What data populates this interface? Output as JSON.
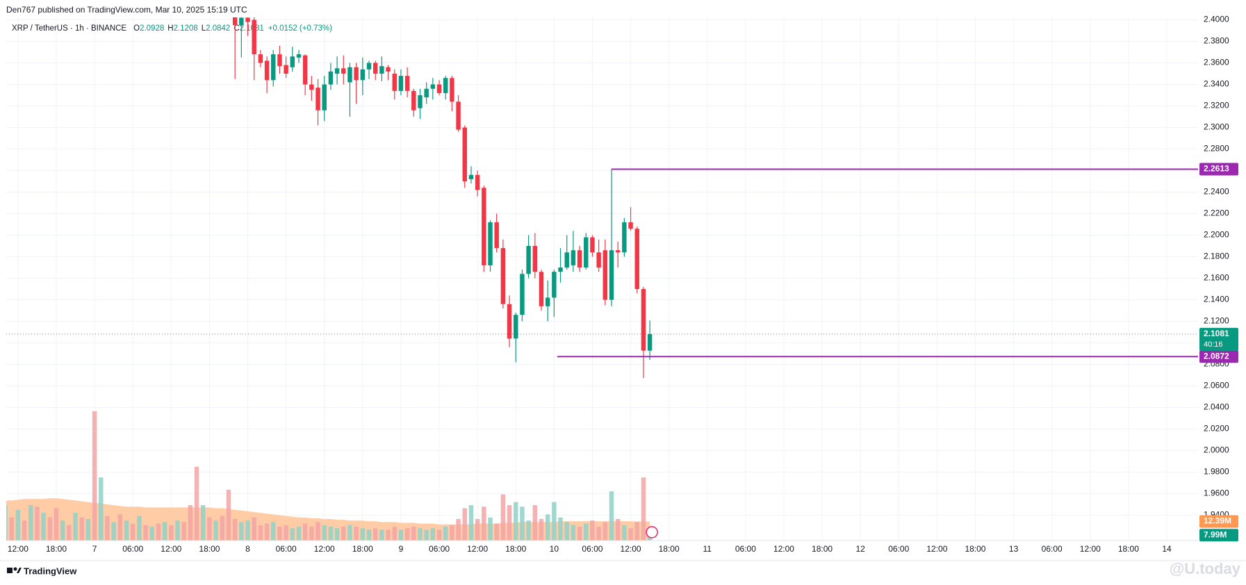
{
  "published": "Den767 published on TradingView.com, Mar 10, 2025 15:19 UTC",
  "footer": "TradingView",
  "watermark": "@U.today",
  "chart_data": {
    "type": "candlestick",
    "title": "XRP / TetherUS · 1h · BINANCE",
    "ohlc_labels": [
      "O",
      "H",
      "L",
      "C"
    ],
    "ohlc_values": [
      2.0928,
      2.1208,
      2.0842,
      2.1081
    ],
    "change": "+0.0152 (+0.73%)",
    "up_color": "#089981",
    "down_color": "#f23645",
    "xlim": [
      -13.84,
      172.9
    ],
    "ylim": [
      1.9164,
      2.4023
    ],
    "grid": true,
    "xticks": [
      {
        "value": -12,
        "label": "12:00"
      },
      {
        "value": -6,
        "label": "18:00"
      },
      {
        "value": 0,
        "label": "7"
      },
      {
        "value": 6,
        "label": "06:00"
      },
      {
        "value": 12,
        "label": "12:00"
      },
      {
        "value": 18,
        "label": "18:00"
      },
      {
        "value": 24,
        "label": "8"
      },
      {
        "value": 30,
        "label": "06:00"
      },
      {
        "value": 36,
        "label": "12:00"
      },
      {
        "value": 42,
        "label": "18:00"
      },
      {
        "value": 48,
        "label": "9"
      },
      {
        "value": 54,
        "label": "06:00"
      },
      {
        "value": 60,
        "label": "12:00"
      },
      {
        "value": 66,
        "label": "18:00"
      },
      {
        "value": 72,
        "label": "10"
      },
      {
        "value": 78,
        "label": "06:00"
      },
      {
        "value": 84,
        "label": "12:00"
      },
      {
        "value": 90,
        "label": "18:00"
      },
      {
        "value": 96,
        "label": "11"
      },
      {
        "value": 102,
        "label": "06:00"
      },
      {
        "value": 108,
        "label": "12:00"
      },
      {
        "value": 114,
        "label": "18:00"
      },
      {
        "value": 120,
        "label": "12"
      },
      {
        "value": 126,
        "label": "06:00"
      },
      {
        "value": 132,
        "label": "12:00"
      },
      {
        "value": 138,
        "label": "18:00"
      },
      {
        "value": 144,
        "label": "13"
      },
      {
        "value": 150,
        "label": "06:00"
      },
      {
        "value": 156,
        "label": "12:00"
      },
      {
        "value": 162,
        "label": "18:00"
      },
      {
        "value": 168,
        "label": "14"
      }
    ],
    "yticks": [
      {
        "value": 2.4,
        "label": "2.4000"
      },
      {
        "value": 2.38,
        "label": "2.3800"
      },
      {
        "value": 2.36,
        "label": "2.3600"
      },
      {
        "value": 2.34,
        "label": "2.3400"
      },
      {
        "value": 2.32,
        "label": "2.3200"
      },
      {
        "value": 2.3,
        "label": "2.3000"
      },
      {
        "value": 2.28,
        "label": "2.2800"
      },
      {
        "value": 2.26,
        "label": "2.2600"
      },
      {
        "value": 2.24,
        "label": "2.2400"
      },
      {
        "value": 2.22,
        "label": "2.2200"
      },
      {
        "value": 2.2,
        "label": "2.2000"
      },
      {
        "value": 2.18,
        "label": "2.1800"
      },
      {
        "value": 2.16,
        "label": "2.1600"
      },
      {
        "value": 2.14,
        "label": "2.1400"
      },
      {
        "value": 2.12,
        "label": "2.1200"
      },
      {
        "value": 2.1,
        "label": "2.1000"
      },
      {
        "value": 2.08,
        "label": "2.0800"
      },
      {
        "value": 2.06,
        "label": "2.0600"
      },
      {
        "value": 2.04,
        "label": "2.0400"
      },
      {
        "value": 2.02,
        "label": "2.0200"
      },
      {
        "value": 2.0,
        "label": "2.0000"
      },
      {
        "value": 1.98,
        "label": "1.9800"
      },
      {
        "value": 1.96,
        "label": "1.9600"
      },
      {
        "value": 1.94,
        "label": "1.9400"
      }
    ],
    "x": [
      22,
      23,
      24,
      25,
      26,
      27,
      28,
      29,
      30,
      31,
      32,
      33,
      34,
      35,
      36,
      37,
      38,
      39,
      40,
      41,
      42,
      43,
      44,
      45,
      46,
      47,
      48,
      49,
      50,
      51,
      52,
      53,
      54,
      55,
      56,
      57,
      58,
      59,
      60,
      61,
      62,
      63,
      64,
      65,
      66,
      67,
      68,
      69,
      70,
      71,
      72,
      73,
      74,
      75,
      76,
      77,
      78,
      79,
      80,
      81,
      82,
      83,
      84,
      85,
      86,
      87
    ],
    "open": [
      2.405,
      2.395,
      2.402,
      2.4,
      2.368,
      2.362,
      2.344,
      2.368,
      2.358,
      2.356,
      2.365,
      2.367,
      2.34,
      2.337,
      2.316,
      2.34,
      2.35,
      2.355,
      2.342,
      2.356,
      2.344,
      2.354,
      2.36,
      2.35,
      2.356,
      2.35,
      2.334,
      2.348,
      2.334,
      2.318,
      2.328,
      2.336,
      2.34,
      2.332,
      2.346,
      2.324,
      2.3,
      2.252,
      2.256,
      2.244,
      2.172,
      2.212,
      2.188,
      2.136,
      2.104,
      2.126,
      2.164,
      2.19,
      2.166,
      2.134,
      2.142,
      2.166,
      2.17,
      2.172,
      2.186,
      2.17,
      2.198,
      2.184,
      2.186,
      2.14,
      2.186,
      2.184,
      2.212,
      2.206,
      2.15,
      2.0928
    ],
    "high": [
      2.41,
      2.41,
      2.41,
      2.405,
      2.372,
      2.366,
      2.372,
      2.376,
      2.366,
      2.375,
      2.372,
      2.368,
      2.348,
      2.345,
      2.348,
      2.36,
      2.366,
      2.367,
      2.36,
      2.36,
      2.365,
      2.362,
      2.362,
      2.366,
      2.358,
      2.354,
      2.354,
      2.356,
      2.336,
      2.336,
      2.342,
      2.346,
      2.344,
      2.348,
      2.348,
      2.33,
      2.302,
      2.264,
      2.26,
      2.246,
      2.214,
      2.22,
      2.196,
      2.144,
      2.128,
      2.168,
      2.2,
      2.202,
      2.168,
      2.158,
      2.168,
      2.188,
      2.2,
      2.204,
      2.19,
      2.202,
      2.2,
      2.196,
      2.196,
      2.2613,
      2.194,
      2.216,
      2.226,
      2.208,
      2.152,
      2.1208
    ],
    "low": [
      2.345,
      2.365,
      2.385,
      2.344,
      2.356,
      2.332,
      2.338,
      2.35,
      2.346,
      2.352,
      2.36,
      2.33,
      2.325,
      2.302,
      2.306,
      2.335,
      2.34,
      2.34,
      2.31,
      2.322,
      2.33,
      2.345,
      2.344,
      2.343,
      2.344,
      2.326,
      2.33,
      2.328,
      2.31,
      2.308,
      2.322,
      2.326,
      2.33,
      2.326,
      2.315,
      2.296,
      2.244,
      2.248,
      2.236,
      2.166,
      2.166,
      2.184,
      2.132,
      2.096,
      2.082,
      2.12,
      2.16,
      2.16,
      2.13,
      2.12,
      2.124,
      2.156,
      2.168,
      2.166,
      2.166,
      2.168,
      2.18,
      2.166,
      2.135,
      2.134,
      2.17,
      2.18,
      2.204,
      2.146,
      2.0672,
      2.0842
    ],
    "close": [
      2.395,
      2.402,
      2.398,
      2.368,
      2.36,
      2.344,
      2.368,
      2.357,
      2.35,
      2.366,
      2.368,
      2.34,
      2.335,
      2.316,
      2.34,
      2.352,
      2.355,
      2.35,
      2.356,
      2.344,
      2.354,
      2.36,
      2.35,
      2.357,
      2.352,
      2.334,
      2.348,
      2.334,
      2.316,
      2.33,
      2.336,
      2.34,
      2.332,
      2.346,
      2.324,
      2.298,
      2.25,
      2.256,
      2.242,
      2.172,
      2.212,
      2.188,
      2.136,
      2.104,
      2.126,
      2.164,
      2.19,
      2.166,
      2.134,
      2.142,
      2.166,
      2.17,
      2.184,
      2.186,
      2.17,
      2.198,
      2.184,
      2.17,
      2.14,
      2.186,
      2.184,
      2.212,
      2.206,
      2.15,
      2.0928,
      2.1081
    ],
    "levels": [
      {
        "value": 2.2613,
        "x": 81,
        "color": "#9c27b0"
      },
      {
        "value": 2.0872,
        "x": 72.5,
        "color": "#9c27b0"
      }
    ],
    "countdown": "40:16",
    "volume": {
      "ylim": [
        0,
        340
      ],
      "last_label": "7.99M",
      "series": [
        {
          "color": "#8fd1c8",
          "label_color": "#089981",
          "x": [
            -14,
            -12,
            -10,
            -8,
            -5,
            -3,
            -1,
            1,
            3,
            5,
            7,
            9,
            11,
            13,
            17,
            19,
            23,
            24,
            28,
            31,
            32,
            36,
            37,
            38,
            40,
            42,
            43,
            45,
            48,
            51,
            52,
            53,
            55,
            59,
            62,
            66,
            67,
            68,
            71,
            72,
            73,
            74,
            75,
            77,
            81,
            83,
            87
          ],
          "values": [
            23,
            20,
            23,
            18,
            13,
            18,
            14,
            41,
            12,
            13,
            16,
            9,
            12,
            13,
            23,
            13,
            12,
            13,
            12,
            8,
            9,
            10,
            9,
            8,
            10,
            8,
            7,
            7,
            7,
            8,
            7,
            8,
            9,
            23,
            15,
            25,
            22,
            13,
            17,
            25,
            15,
            12,
            10,
            11,
            32,
            10,
            7.99
          ]
        },
        {
          "color": "#f5a3a4",
          "x": [
            -13,
            -11,
            -9,
            -7,
            -6,
            -4,
            -2,
            0,
            2,
            4,
            6,
            8,
            10,
            12,
            14,
            15,
            16,
            18,
            20,
            21,
            22,
            25,
            26,
            27,
            29,
            30,
            33,
            34,
            35,
            39,
            41,
            44,
            46,
            47,
            49,
            50,
            54,
            56,
            57,
            58,
            60,
            61,
            63,
            64,
            65,
            69,
            70,
            76,
            78,
            79,
            80,
            82,
            84,
            85,
            86
          ],
          "values": [
            15,
            13,
            22,
            15,
            21,
            10,
            15,
            84,
            16,
            17,
            11,
            10,
            11,
            10,
            12,
            23,
            48,
            15,
            16,
            33,
            14,
            15,
            10,
            11,
            9,
            10,
            11,
            9,
            12,
            9,
            9,
            8,
            7,
            9,
            8,
            9,
            7,
            10,
            14,
            21,
            14,
            22,
            11,
            30,
            23,
            23,
            14,
            9,
            13,
            9,
            12,
            14,
            8,
            12,
            41
          ]
        }
      ]
    },
    "volume_ma": {
      "color": "#ffcca6",
      "label_color": "#ff9850",
      "last_label": "12.39M",
      "x": [
        -14,
        -13,
        -12,
        -11,
        -10,
        -9,
        -8,
        -7,
        -6,
        -5,
        -4,
        -3,
        -2,
        -1,
        0,
        1,
        2,
        3,
        4,
        5,
        6,
        7,
        8,
        9,
        10,
        11,
        12,
        13,
        14,
        15,
        16,
        17,
        18,
        19,
        20,
        21,
        22,
        23,
        24,
        25,
        26,
        27,
        28,
        29,
        30,
        31,
        32,
        33,
        34,
        35,
        36,
        37,
        38,
        39,
        40,
        41,
        42,
        43,
        44,
        45,
        46,
        47,
        48,
        49,
        50,
        51,
        52,
        53,
        54,
        55,
        56,
        57,
        58,
        59,
        60,
        61,
        62,
        63,
        64,
        65,
        66,
        67,
        68,
        69,
        70,
        71,
        72,
        73,
        74,
        75,
        76,
        77,
        78,
        79,
        80,
        81,
        82,
        83,
        84,
        85,
        86,
        87
      ],
      "values": [
        26,
        26,
        26.5,
        27,
        27,
        27,
        27,
        27.5,
        27.5,
        27,
        26.5,
        26,
        25.5,
        25,
        24.5,
        24,
        23.5,
        23,
        22.5,
        22,
        22,
        22,
        21.5,
        21.5,
        21.5,
        21.5,
        21.5,
        21.5,
        21.5,
        21.5,
        21.5,
        21.5,
        21.5,
        21,
        21,
        20.5,
        20,
        19.5,
        19,
        18.5,
        18,
        17.5,
        17,
        16.5,
        16,
        15.5,
        15,
        15,
        14.5,
        14.5,
        14,
        14,
        13.5,
        13.5,
        13,
        13,
        13,
        12.5,
        12.5,
        12,
        12,
        12,
        11.5,
        11.5,
        11.5,
        11,
        11,
        11,
        10.5,
        10.5,
        10.5,
        10.5,
        10.5,
        10.5,
        11,
        11,
        11,
        11,
        11.5,
        11.5,
        11.5,
        12,
        12,
        12,
        12,
        12,
        12,
        12.5,
        12.5,
        12.5,
        12.5,
        12.5,
        12.5,
        12.5,
        12.5,
        12.5,
        12.5,
        12.5,
        12.5,
        12.4,
        12.4,
        12.39
      ]
    }
  }
}
